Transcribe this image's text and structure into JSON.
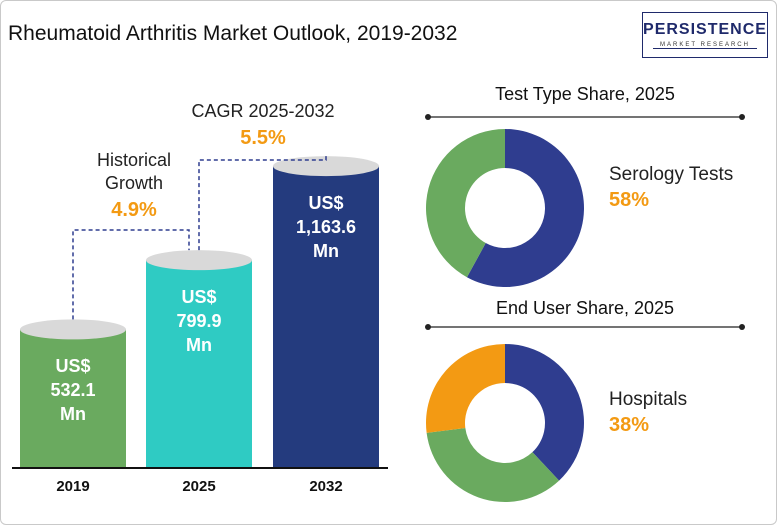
{
  "title": "Rheumatoid Arthritis Market Outlook, 2019-2032",
  "logo": {
    "main": "PERSISTENCE",
    "sub": "MARKET RESEARCH"
  },
  "chart_data": [
    {
      "type": "bar",
      "categories": [
        "2019",
        "2025",
        "2032"
      ],
      "values": [
        532.1,
        799.9,
        1163.6
      ],
      "value_labels": [
        "US$\n532.1\nMn",
        "US$\n799.9\nMn",
        "US$\n1,163.6\nMn"
      ],
      "colors": [
        "#6aaa5f",
        "#2fcbc3",
        "#243b7e"
      ],
      "ylim": [
        0,
        1400
      ],
      "annotations": [
        {
          "label": "Historical\nGrowth",
          "value": "4.9%"
        },
        {
          "label": "CAGR 2025-2032",
          "value": "5.5%"
        }
      ]
    },
    {
      "type": "pie",
      "title": "Test Type Share, 2025",
      "slices": [
        {
          "value": 58,
          "color": "#2f3d8f"
        },
        {
          "value": 42,
          "color": "#6aaa5f"
        }
      ],
      "highlight": {
        "label": "Serology Tests",
        "value": "58%"
      }
    },
    {
      "type": "pie",
      "title": "End User Share, 2025",
      "slices": [
        {
          "value": 38,
          "color": "#2f3d8f"
        },
        {
          "value": 35,
          "color": "#6aaa5f"
        },
        {
          "value": 27,
          "color": "#f39a13"
        }
      ],
      "highlight": {
        "label": "Hospitals",
        "value": "38%"
      }
    }
  ]
}
